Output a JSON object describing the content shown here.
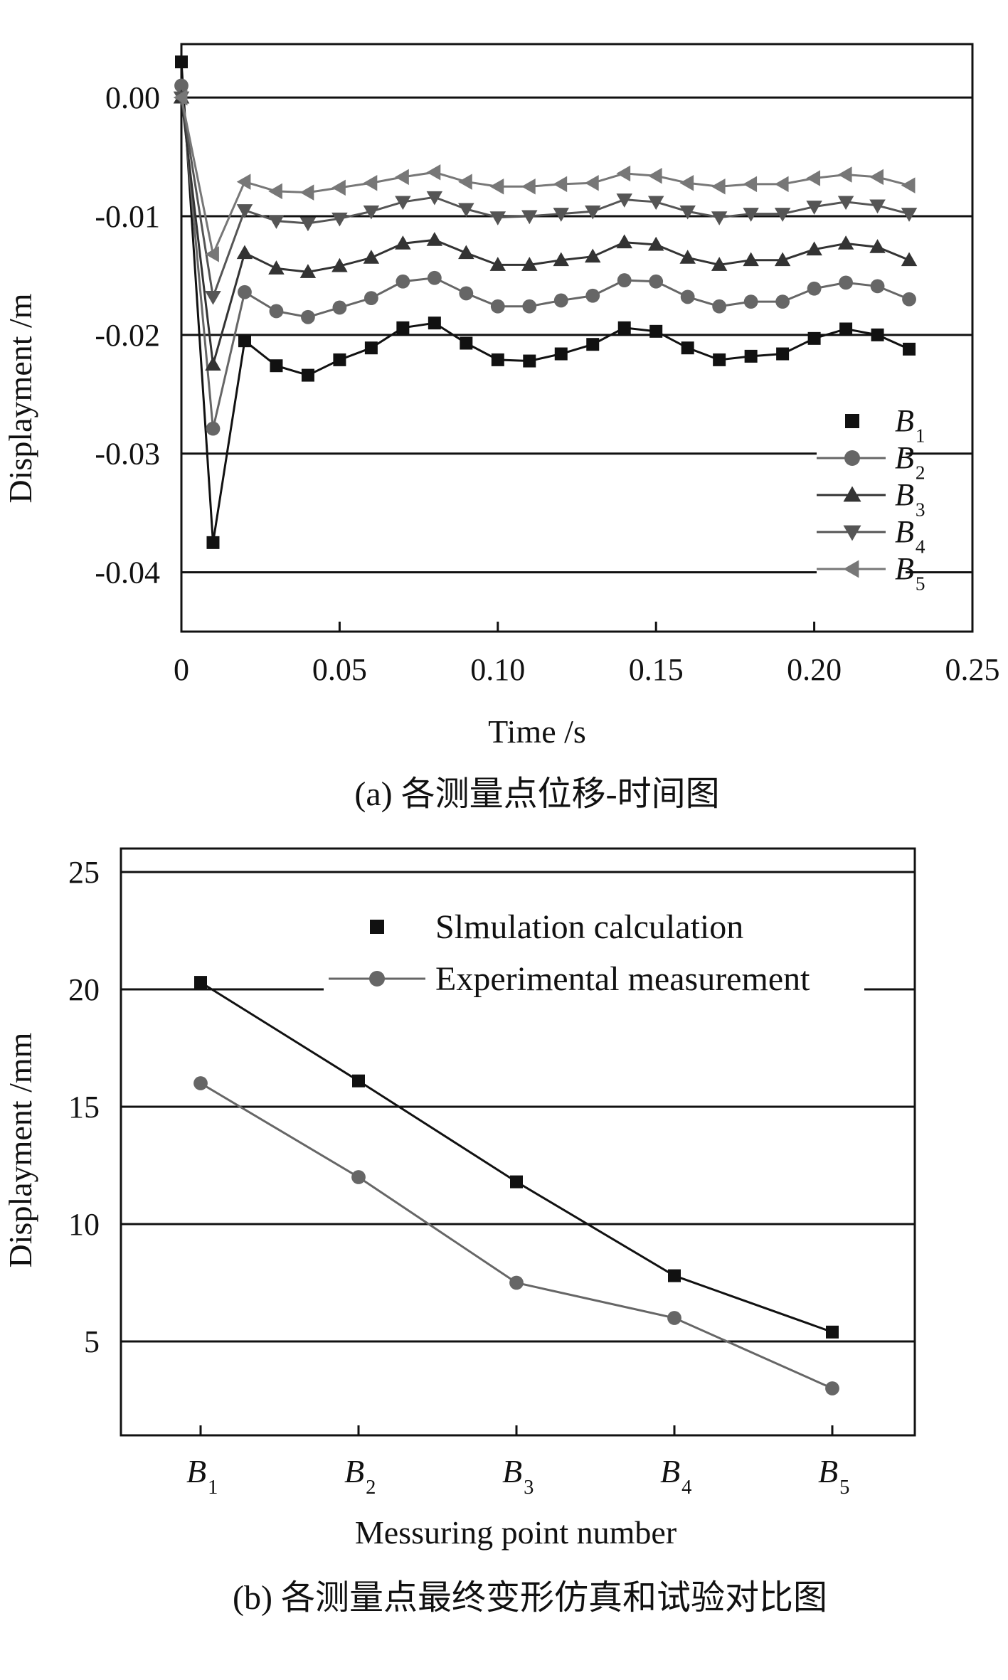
{
  "chart_data": [
    {
      "type": "line",
      "panel": "a",
      "caption": "(a) 各测量点位移-时间图",
      "xlabel": "Time /s",
      "ylabel": "Displayment /m",
      "xlim": [
        0,
        0.25
      ],
      "ylim": [
        -0.045,
        0.0045
      ],
      "x_ticks": [
        "0",
        "0.05",
        "0.10",
        "0.15",
        "0.20",
        "0.25"
      ],
      "y_ticks": [
        "0.00",
        "-0.01",
        "-0.02",
        "-0.03",
        "-0.04"
      ],
      "grid": "horizontal",
      "legend_position": "bottom-right",
      "x": [
        0,
        0.01,
        0.02,
        0.03,
        0.04,
        0.05,
        0.06,
        0.07,
        0.08,
        0.09,
        0.1,
        0.11,
        0.12,
        0.13,
        0.14,
        0.15,
        0.16,
        0.17,
        0.18,
        0.19,
        0.2,
        0.21,
        0.22,
        0.23
      ],
      "series": [
        {
          "name": "B",
          "sub": "1",
          "marker": "square",
          "color": "#111111",
          "values": [
            0.003,
            -0.0375,
            -0.0205,
            -0.0226,
            -0.0234,
            -0.0221,
            -0.0211,
            -0.0194,
            -0.019,
            -0.0207,
            -0.0221,
            -0.0222,
            -0.0216,
            -0.0208,
            -0.0194,
            -0.0197,
            -0.0211,
            -0.0221,
            -0.0218,
            -0.0216,
            -0.0203,
            -0.0195,
            -0.02,
            -0.0212
          ]
        },
        {
          "name": "B",
          "sub": "2",
          "marker": "circle",
          "color": "#666666",
          "values": [
            0.001,
            -0.0279,
            -0.0164,
            -0.018,
            -0.0185,
            -0.0177,
            -0.0169,
            -0.0155,
            -0.0152,
            -0.0165,
            -0.0176,
            -0.0176,
            -0.0171,
            -0.0167,
            -0.0154,
            -0.0155,
            -0.0168,
            -0.0176,
            -0.0172,
            -0.0172,
            -0.0161,
            -0.0156,
            -0.0159,
            -0.017
          ]
        },
        {
          "name": "B",
          "sub": "3",
          "marker": "triangle-up",
          "color": "#333333",
          "values": [
            0.0,
            -0.0225,
            -0.0131,
            -0.0144,
            -0.0147,
            -0.0142,
            -0.0135,
            -0.0123,
            -0.012,
            -0.0131,
            -0.0141,
            -0.0141,
            -0.0137,
            -0.0134,
            -0.0122,
            -0.0124,
            -0.0135,
            -0.0141,
            -0.0137,
            -0.0137,
            -0.0128,
            -0.0123,
            -0.0126,
            -0.0137
          ]
        },
        {
          "name": "B",
          "sub": "4",
          "marker": "triangle-down",
          "color": "#555555",
          "values": [
            0.0,
            -0.0168,
            -0.0095,
            -0.0104,
            -0.0106,
            -0.0102,
            -0.0096,
            -0.0088,
            -0.0084,
            -0.0094,
            -0.0101,
            -0.01,
            -0.0098,
            -0.0096,
            -0.0086,
            -0.0088,
            -0.0096,
            -0.0101,
            -0.0098,
            -0.0098,
            -0.0092,
            -0.0088,
            -0.0091,
            -0.0098
          ]
        },
        {
          "name": "B",
          "sub": "5",
          "marker": "triangle-left",
          "color": "#777777",
          "values": [
            0.0,
            -0.0132,
            -0.0071,
            -0.0079,
            -0.008,
            -0.0076,
            -0.0072,
            -0.0067,
            -0.0063,
            -0.0071,
            -0.0075,
            -0.0075,
            -0.0073,
            -0.0072,
            -0.0064,
            -0.0066,
            -0.0072,
            -0.0075,
            -0.0073,
            -0.0073,
            -0.0068,
            -0.0065,
            -0.0067,
            -0.0074
          ]
        }
      ]
    },
    {
      "type": "line",
      "panel": "b",
      "caption": "(b) 各测量点最终变形仿真和试验对比图",
      "xlabel": "Messuring point number",
      "ylabel": "Displayment /mm",
      "ylim": [
        1,
        26
      ],
      "y_ticks": [
        "25",
        "20",
        "15",
        "10",
        "5"
      ],
      "grid": "horizontal",
      "legend_position": "top-right",
      "categories": [
        {
          "name": "B",
          "sub": "1"
        },
        {
          "name": "B",
          "sub": "2"
        },
        {
          "name": "B",
          "sub": "3"
        },
        {
          "name": "B",
          "sub": "4"
        },
        {
          "name": "B",
          "sub": "5"
        }
      ],
      "series": [
        {
          "name": "Slmulation calculation",
          "marker": "square",
          "color": "#111111",
          "values": [
            20.3,
            16.1,
            11.8,
            7.8,
            5.4
          ]
        },
        {
          "name": "Experimental measurement",
          "marker": "circle",
          "color": "#666666",
          "values": [
            16.0,
            12.0,
            7.5,
            6.0,
            3.0
          ]
        }
      ]
    }
  ]
}
